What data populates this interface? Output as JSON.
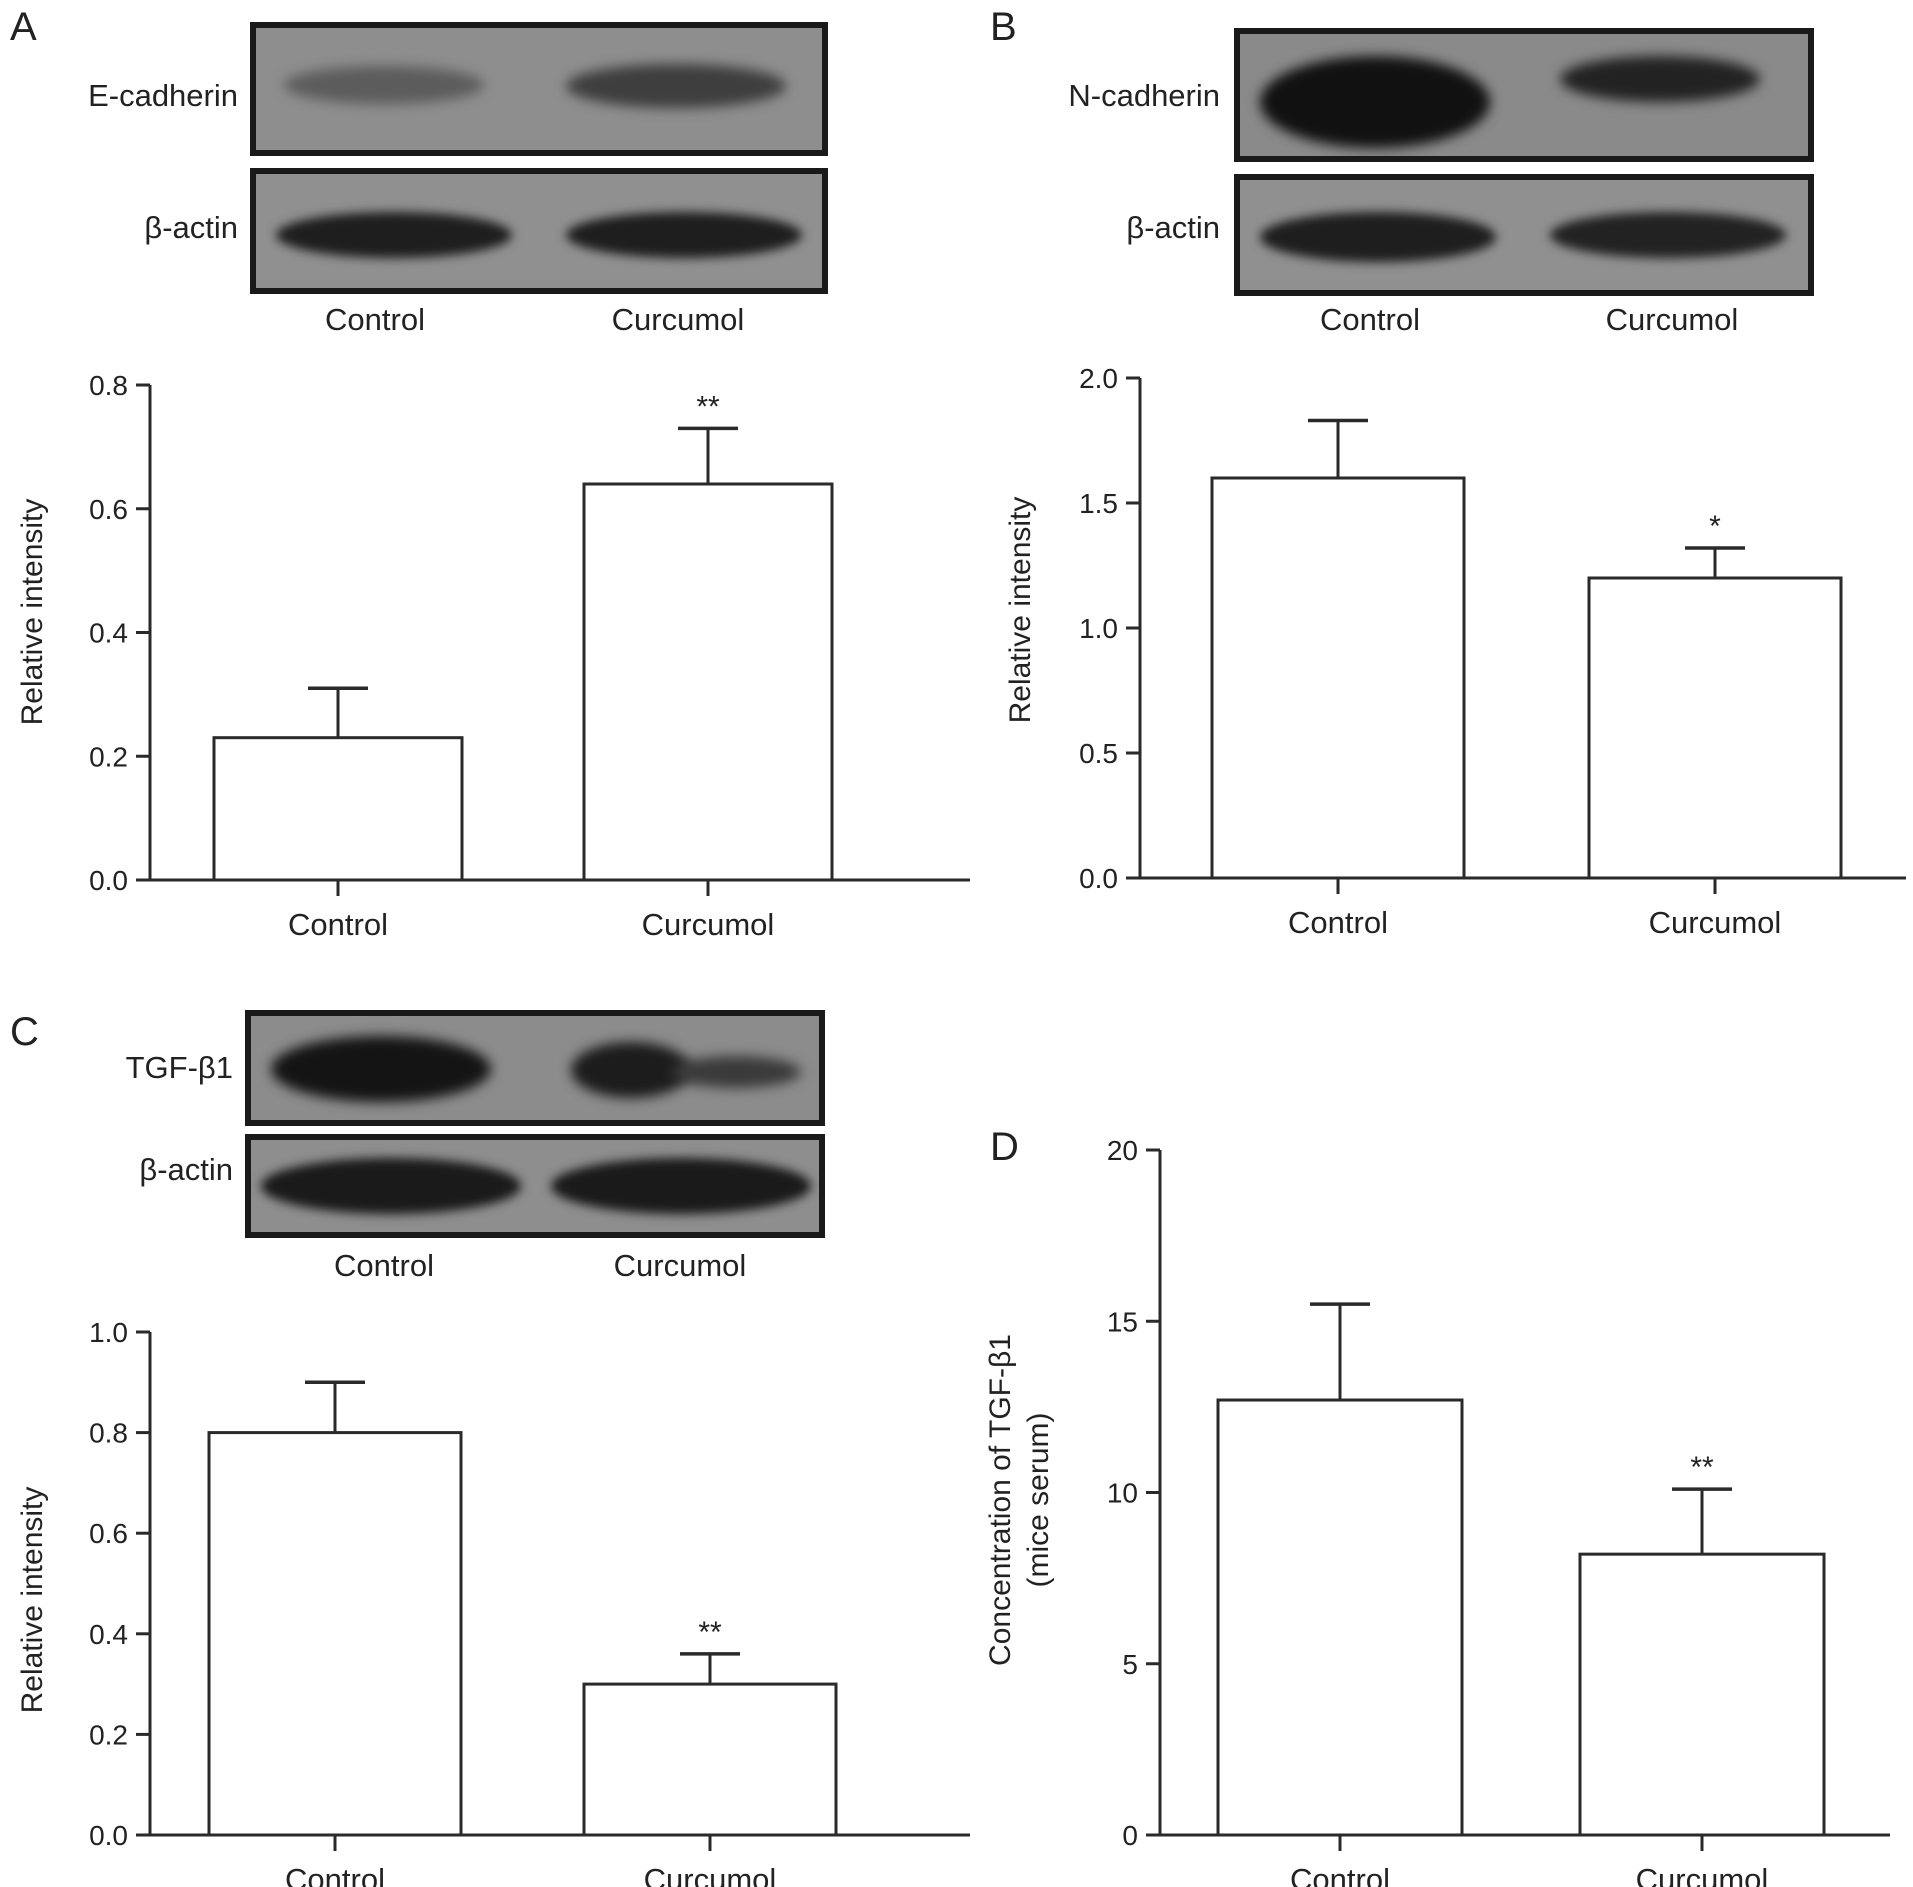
{
  "panels": {
    "A": {
      "letter": "A",
      "blot": {
        "rows": [
          "E-cadherin",
          "β-actin"
        ],
        "lanes": [
          "Control",
          "Curcumol"
        ]
      }
    },
    "B": {
      "letter": "B",
      "blot": {
        "rows": [
          "N-cadherin",
          "β-actin"
        ],
        "lanes": [
          "Control",
          "Curcumol"
        ]
      }
    },
    "C": {
      "letter": "C",
      "blot": {
        "rows": [
          "TGF-β1",
          "β-actin"
        ],
        "lanes": [
          "Control",
          "Curcumol"
        ]
      }
    },
    "D": {
      "letter": "D"
    }
  },
  "chart_data": [
    {
      "id": "A",
      "type": "bar",
      "categories": [
        "Control",
        "Curcumol"
      ],
      "values": [
        0.23,
        0.64
      ],
      "errors": [
        0.08,
        0.09
      ],
      "significance": [
        "",
        "**"
      ],
      "ylabel": "Relative intensity",
      "ylim": [
        0,
        0.8
      ],
      "yticks": [
        0.0,
        0.2,
        0.4,
        0.6,
        0.8
      ],
      "tick_decimals": 1
    },
    {
      "id": "B",
      "type": "bar",
      "categories": [
        "Control",
        "Curcumol"
      ],
      "values": [
        1.6,
        1.2
      ],
      "errors": [
        0.23,
        0.12
      ],
      "significance": [
        "",
        "*"
      ],
      "ylabel": "Relative intensity",
      "ylim": [
        0,
        2.0
      ],
      "yticks": [
        0.0,
        0.5,
        1.0,
        1.5,
        2.0
      ],
      "tick_decimals": 1
    },
    {
      "id": "C",
      "type": "bar",
      "categories": [
        "Control",
        "Curcumol"
      ],
      "values": [
        0.8,
        0.3
      ],
      "errors": [
        0.1,
        0.06
      ],
      "significance": [
        "",
        "**"
      ],
      "ylabel": "Relative intensity",
      "ylim": [
        0,
        1.0
      ],
      "yticks": [
        0.0,
        0.2,
        0.4,
        0.6,
        0.8,
        1.0
      ],
      "tick_decimals": 1
    },
    {
      "id": "D",
      "type": "bar",
      "categories": [
        "Control",
        "Curcumol"
      ],
      "values": [
        12.7,
        8.2
      ],
      "errors": [
        2.8,
        1.9
      ],
      "significance": [
        "",
        "**"
      ],
      "ylabel": [
        "Concentration of TGF-β1",
        "(mice serum)"
      ],
      "ylim": [
        0,
        20
      ],
      "yticks": [
        0,
        5,
        10,
        15,
        20
      ],
      "tick_decimals": 0
    }
  ]
}
